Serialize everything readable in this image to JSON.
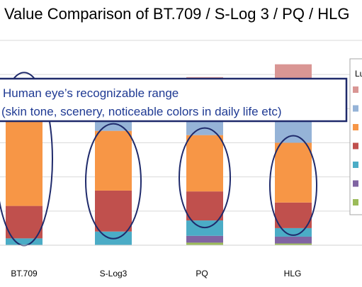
{
  "chart_data": {
    "type": "bar",
    "stacked": true,
    "title": "Value Comparison of BT.709 / S-Log 3 / PQ / HLG",
    "categories": [
      "BT.709",
      "S-Log3",
      "PQ",
      "HLG"
    ],
    "series": [
      {
        "color": "#9bbb59",
        "values": [
          0,
          0,
          1.5,
          1
        ]
      },
      {
        "color": "#8064a2",
        "values": [
          0,
          0,
          4,
          4
        ]
      },
      {
        "color": "#4bacc6",
        "values": [
          4,
          8,
          9,
          5
        ]
      },
      {
        "color": "#c0504d",
        "values": [
          19,
          24,
          17,
          15
        ]
      },
      {
        "color": "#f79646",
        "values": [
          74,
          35,
          33,
          35
        ]
      },
      {
        "color": "#95b3d7",
        "values": [
          0,
          12,
          11,
          16
        ]
      },
      {
        "color": "#d99694",
        "values": [
          0,
          17,
          23,
          30
        ]
      }
    ],
    "ylim": [
      0,
      120
    ],
    "grid": true,
    "legend": {
      "title": "Lu",
      "position": "right",
      "swatches": 7
    },
    "annotation": {
      "line1": "Human eye’s recognizable range",
      "line2": "(skin tone, scenery, noticeable colors in daily life etc)"
    },
    "highlight": "ellipses around the orange and red segments of each bar"
  }
}
